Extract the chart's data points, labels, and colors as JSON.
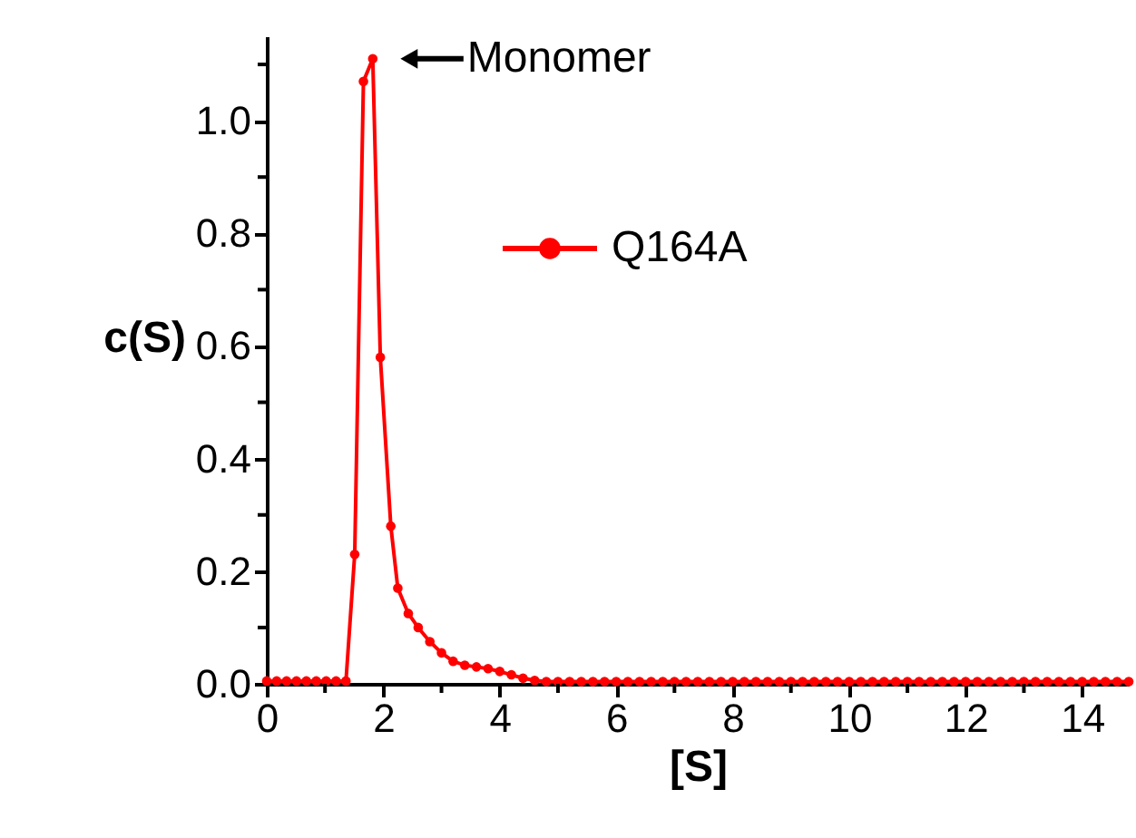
{
  "chart_data": {
    "type": "line",
    "xlabel": "[S]",
    "ylabel": "c(S)",
    "x": [
      0,
      0.17,
      0.34,
      0.51,
      0.68,
      0.85,
      1.02,
      1.19,
      1.36,
      1.51,
      1.66,
      1.82,
      1.95,
      2.13,
      2.25,
      2.43,
      2.6,
      2.8,
      3.0,
      3.2,
      3.4,
      3.6,
      3.8,
      4.0,
      4.2,
      4.4,
      4.6,
      4.8,
      5.0,
      5.2,
      5.4,
      5.6,
      5.8,
      6.0,
      6.2,
      6.4,
      6.6,
      6.8,
      7.0,
      7.2,
      7.4,
      7.6,
      7.8,
      8.0,
      8.2,
      8.4,
      8.6,
      8.8,
      9.0,
      9.2,
      9.4,
      9.6,
      9.8,
      10.0,
      10.2,
      10.4,
      10.6,
      10.8,
      11.0,
      11.2,
      11.4,
      11.6,
      11.8,
      12.0,
      12.2,
      12.4,
      12.6,
      12.8,
      13.0,
      13.2,
      13.4,
      13.6,
      13.8,
      14.0,
      14.2,
      14.4,
      14.6,
      14.8
    ],
    "series": [
      {
        "name": "Q164A",
        "color": "#ff0000",
        "values": [
          0.005,
          0.005,
          0.005,
          0.005,
          0.005,
          0.005,
          0.005,
          0.005,
          0.005,
          0.23,
          1.07,
          1.11,
          0.58,
          0.28,
          0.17,
          0.125,
          0.1,
          0.075,
          0.055,
          0.04,
          0.033,
          0.03,
          0.027,
          0.022,
          0.016,
          0.01,
          0.006,
          0.004,
          0.004,
          0.004,
          0.004,
          0.004,
          0.004,
          0.004,
          0.004,
          0.004,
          0.004,
          0.004,
          0.004,
          0.004,
          0.004,
          0.004,
          0.004,
          0.004,
          0.004,
          0.004,
          0.004,
          0.004,
          0.004,
          0.004,
          0.004,
          0.004,
          0.004,
          0.004,
          0.004,
          0.004,
          0.004,
          0.004,
          0.004,
          0.004,
          0.004,
          0.004,
          0.004,
          0.004,
          0.004,
          0.004,
          0.004,
          0.004,
          0.004,
          0.004,
          0.004,
          0.004,
          0.004,
          0.004,
          0.004,
          0.004,
          0.004,
          0.004
        ]
      }
    ],
    "xlim": [
      0,
      14.8
    ],
    "ylim": [
      0,
      1.15
    ],
    "xticks": [
      0,
      {
        "value": 1,
        "label": null
      },
      2,
      {
        "value": 3,
        "label": null
      },
      4,
      {
        "value": 5,
        "label": null
      },
      6,
      {
        "value": 7,
        "label": null
      },
      8,
      {
        "value": 9,
        "label": null
      },
      10,
      {
        "value": 11,
        "label": null
      },
      12,
      {
        "value": 13,
        "label": null
      },
      14
    ],
    "yticks": [
      {
        "value": 0,
        "label": "0.0"
      },
      {
        "value": 0.1,
        "label": null
      },
      {
        "value": 0.2,
        "label": "0.2"
      },
      {
        "value": 0.3,
        "label": null
      },
      {
        "value": 0.4,
        "label": "0.4"
      },
      {
        "value": 0.5,
        "label": null
      },
      {
        "value": 0.6,
        "label": "0.6"
      },
      {
        "value": 0.7,
        "label": null
      },
      {
        "value": 0.8,
        "label": "0.8"
      },
      {
        "value": 0.9,
        "label": null
      },
      {
        "value": 1.0,
        "label": "1.0"
      },
      {
        "value": 1.1,
        "label": null
      }
    ],
    "annotations": [
      {
        "text": "Monomer",
        "x": 1.82,
        "y": 1.11
      }
    ],
    "grid": false,
    "legend": "top",
    "marker": "circle",
    "line_style": "solid"
  }
}
